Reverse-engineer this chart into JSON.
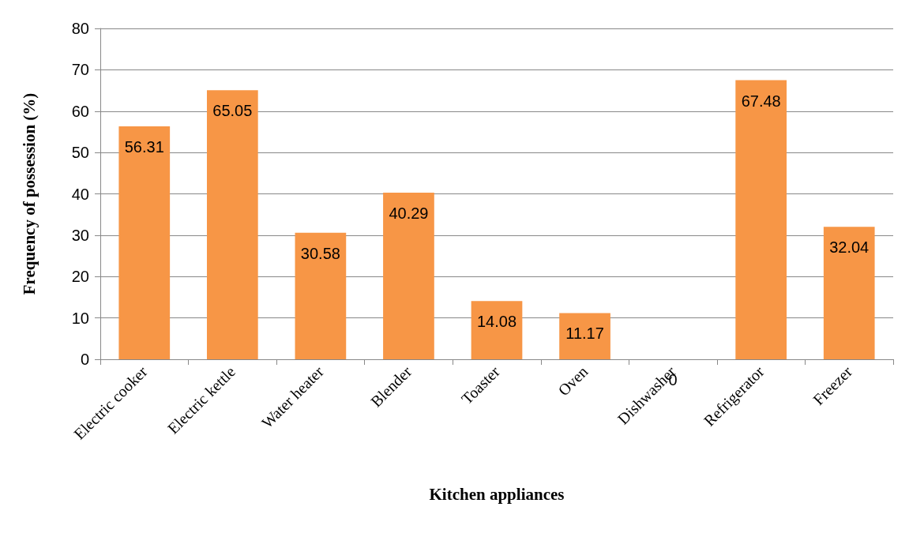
{
  "chart_data": {
    "type": "bar",
    "xlabel": "Kitchen appliances",
    "ylabel": "Frequency of possession (%)",
    "categories": [
      "Electric cooker",
      "Electric kettle",
      "Water heater",
      "Blender",
      "Toaster",
      "Oven",
      "Dishwasher",
      "Refrigerator",
      "Freezer"
    ],
    "values": [
      56.31,
      65.05,
      30.58,
      40.29,
      14.08,
      11.17,
      0,
      67.48,
      32.04
    ],
    "color": "#f79646",
    "ylim": [
      0,
      80
    ],
    "yticks": [
      0,
      10,
      20,
      30,
      40,
      50,
      60,
      70,
      80
    ],
    "grid": "y",
    "data_labels": true
  }
}
